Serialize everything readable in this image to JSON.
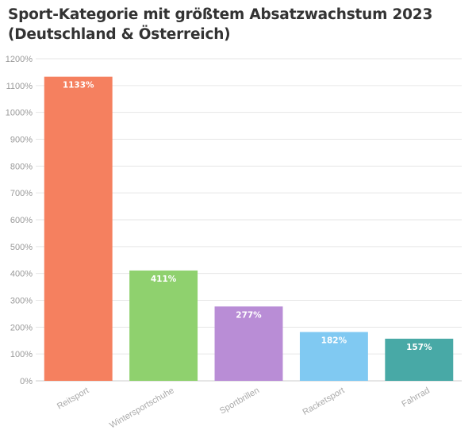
{
  "chart_data": {
    "type": "bar",
    "title": "Sport-Kategorie mit größtem Absatzwachstum 2023 (Deutschland & Österreich)",
    "xlabel": "",
    "ylabel": "",
    "categories": [
      "Reitsport",
      "Wintersportschuhe",
      "Sportbrillen",
      "Racketsport",
      "Fahrrad"
    ],
    "values": [
      1133,
      411,
      277,
      182,
      157
    ],
    "data_labels": [
      "1133%",
      "411%",
      "277%",
      "182%",
      "157%"
    ],
    "colors": [
      "#f5805f",
      "#8fd16e",
      "#b98dd6",
      "#80c9f2",
      "#48a9a6"
    ],
    "ylim": [
      0,
      1200
    ],
    "yticks": [
      0,
      100,
      200,
      300,
      400,
      500,
      600,
      700,
      800,
      900,
      1000,
      1100,
      1200
    ],
    "ytick_labels": [
      "0%",
      "100%",
      "200%",
      "300%",
      "400%",
      "500%",
      "600%",
      "700%",
      "800%",
      "900%",
      "1000%",
      "1100%",
      "1200%"
    ],
    "grid": true,
    "gridline_color": "#e6e6e6",
    "legend": "none"
  }
}
